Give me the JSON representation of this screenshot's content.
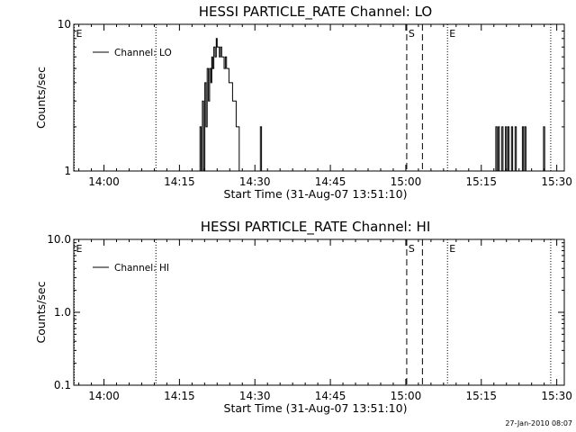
{
  "footer": {
    "timestamp": "27-Jan-2010 08:07"
  },
  "chart_data": [
    {
      "type": "line",
      "title": "HESSI PARTICLE_RATE Channel: LO",
      "xlabel": "Start Time (31-Aug-07 13:51:10)",
      "ylabel": "Counts/sec",
      "yscale": "log",
      "xlim": [
        13.9,
        15.525
      ],
      "ylim": [
        1,
        10
      ],
      "x_tick_labels": [
        "14:00",
        "14:15",
        "14:30",
        "14:45",
        "15:00",
        "15:15",
        "15:30"
      ],
      "x_ticks": [
        14.0,
        14.25,
        14.5,
        14.75,
        15.0,
        15.25,
        15.5
      ],
      "y_tick_labels": [
        "1",
        "10"
      ],
      "y_ticks": [
        1,
        10
      ],
      "legend": {
        "position": "top-left",
        "entries": [
          "Channel: LO"
        ]
      },
      "series": [
        {
          "name": "Channel: LO",
          "x": [
            14.31,
            14.315,
            14.318,
            14.322,
            14.326,
            14.33,
            14.334,
            14.338,
            14.342,
            14.346,
            14.35,
            14.354,
            14.357,
            14.36,
            14.364,
            14.368,
            14.372,
            14.375,
            14.378,
            14.382,
            14.386,
            14.39,
            14.394,
            14.398,
            14.402,
            14.406,
            14.41,
            14.414,
            14.418,
            14.422,
            14.426,
            14.43,
            14.434,
            14.438,
            14.442,
            14.445,
            14.448,
            14.451,
            14.455,
            14.459,
            14.463,
            14.468,
            14.472,
            14.476,
            14.48,
            14.484,
            14.488,
            14.51,
            14.514,
            14.518,
            14.522,
            14.526,
            15.29,
            15.294,
            15.298,
            15.302,
            15.306,
            15.31,
            15.314,
            15.318,
            15.322,
            15.326,
            15.33,
            15.334,
            15.338,
            15.342,
            15.346,
            15.35,
            15.354,
            15.358,
            15.362,
            15.366,
            15.37,
            15.374,
            15.378,
            15.382,
            15.386,
            15.39,
            15.394,
            15.398,
            15.402,
            15.448,
            15.452,
            15.456,
            15.46
          ],
          "y": [
            1,
            1,
            2,
            1,
            3,
            1,
            4,
            2,
            5,
            3,
            5,
            4,
            6,
            5,
            7,
            6,
            8,
            7,
            7,
            6,
            7,
            6,
            6,
            5,
            6,
            5,
            5,
            4,
            4,
            4,
            3,
            3,
            3,
            2,
            2,
            2,
            1,
            1,
            1,
            1,
            1,
            1,
            1,
            1,
            1,
            1,
            1,
            1,
            1,
            2,
            1,
            1,
            1,
            1,
            2,
            1,
            2,
            1,
            1,
            2,
            1,
            1,
            2,
            1,
            2,
            1,
            1,
            2,
            1,
            1,
            2,
            1,
            1,
            1,
            1,
            1,
            2,
            1,
            2,
            1,
            1,
            1,
            1,
            2,
            1
          ]
        }
      ],
      "markers": [
        {
          "label": "E",
          "x": 13.9,
          "style": "dotted"
        },
        {
          "label": "",
          "x": 14.172,
          "style": "dotted"
        },
        {
          "label": "S",
          "x": 15.003,
          "style": "dashed"
        },
        {
          "label": "",
          "x": 15.055,
          "style": "dashed"
        },
        {
          "label": "E",
          "x": 15.138,
          "style": "dotted"
        },
        {
          "label": "",
          "x": 15.48,
          "style": "dotted"
        }
      ]
    },
    {
      "type": "line",
      "title": "HESSI PARTICLE_RATE Channel: HI",
      "xlabel": "Start Time (31-Aug-07 13:51:10)",
      "ylabel": "Counts/sec",
      "yscale": "log",
      "xlim": [
        13.9,
        15.525
      ],
      "ylim": [
        0.1,
        10
      ],
      "x_tick_labels": [
        "14:00",
        "14:15",
        "14:30",
        "14:45",
        "15:00",
        "15:15",
        "15:30"
      ],
      "x_ticks": [
        14.0,
        14.25,
        14.5,
        14.75,
        15.0,
        15.25,
        15.5
      ],
      "y_tick_labels": [
        "0.1",
        "1.0",
        "10.0"
      ],
      "y_ticks": [
        0.1,
        1,
        10
      ],
      "legend": {
        "position": "top-left",
        "entries": [
          "Channel: HI"
        ]
      },
      "series": [
        {
          "name": "Channel: HI",
          "x": [],
          "y": []
        }
      ],
      "markers": [
        {
          "label": "E",
          "x": 13.9,
          "style": "dotted"
        },
        {
          "label": "",
          "x": 14.172,
          "style": "dotted"
        },
        {
          "label": "S",
          "x": 15.003,
          "style": "dashed"
        },
        {
          "label": "",
          "x": 15.055,
          "style": "dashed"
        },
        {
          "label": "E",
          "x": 15.138,
          "style": "dotted"
        },
        {
          "label": "",
          "x": 15.48,
          "style": "dotted"
        }
      ]
    }
  ]
}
